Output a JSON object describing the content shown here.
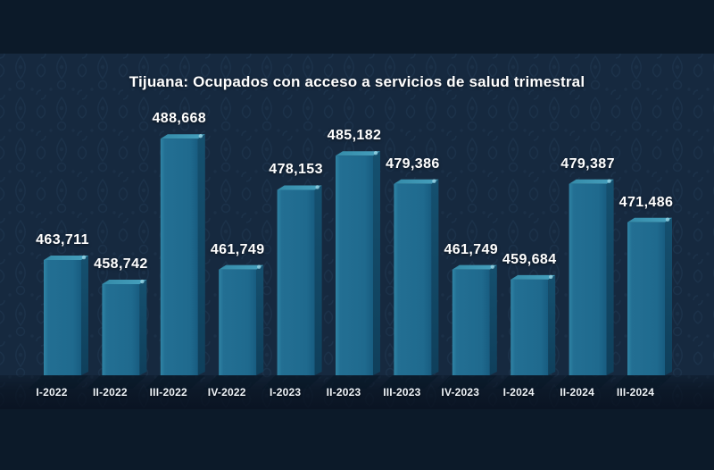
{
  "chart_data": {
    "type": "bar",
    "title": "Tijuana: Ocupados con acceso a servicios de salud trimestral",
    "categories": [
      "I-2022",
      "II-2022",
      "III-2022",
      "IV-2022",
      "I-2023",
      "II-2023",
      "III-2023",
      "IV-2023",
      "I-2024",
      "II-2024",
      "III-2024"
    ],
    "values": [
      463711,
      458742,
      488668,
      461749,
      478153,
      485182,
      479386,
      461749,
      459684,
      479387,
      471486
    ],
    "value_labels": [
      "463,711",
      "458,742",
      "488,668",
      "461,749",
      "478,153",
      "485,182",
      "479,386",
      "461,749",
      "459,684",
      "479,387",
      "471,486"
    ],
    "xlabel": "",
    "ylabel": "",
    "ylim": [
      440000,
      490000
    ],
    "grid": false,
    "legend": false,
    "bar_style": "3d-box",
    "colors": {
      "bar_front_light": "#2f84a5",
      "bar_front": "#1f6a8e",
      "bar_front_dark": "#185c80",
      "bar_top_light": "#46a0bd",
      "bar_top": "#348ba9",
      "bar_side": "#15506f",
      "bar_side_dark": "#0f3f5b",
      "bar_corner_highlight": "#9ed8e8",
      "floor_shadow": "#081726",
      "title_text": "#ffffff",
      "value_text": "#ffffff",
      "axis_text": "#eef3f8",
      "background_outer": "#0c1a29",
      "background_panel": "#1b3352"
    }
  }
}
